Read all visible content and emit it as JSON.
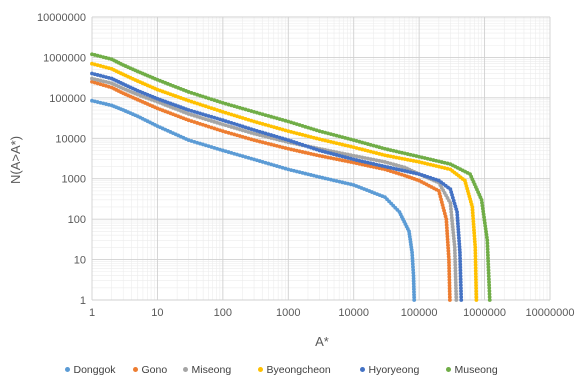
{
  "chart_data": {
    "type": "scatter",
    "title": "",
    "xlabel": "A*",
    "ylabel": "N(A>A*)",
    "xscale": "log",
    "yscale": "log",
    "xlim": [
      1,
      10000000
    ],
    "ylim": [
      1,
      10000000
    ],
    "grid": true,
    "legend_position": "bottom",
    "x_ticks": [
      "1",
      "10",
      "100",
      "1000",
      "10000",
      "100000",
      "1000000",
      "10000000"
    ],
    "y_ticks": [
      "1",
      "10",
      "100",
      "1000",
      "10000",
      "100000",
      "1000000",
      "10000000"
    ],
    "series": [
      {
        "name": "Donggok",
        "color": "#5B9BD5",
        "x": [
          1,
          2,
          3,
          5,
          10,
          30,
          100,
          300,
          1000,
          3000,
          10000,
          30000,
          50000,
          70000,
          78000,
          82000,
          84000
        ],
        "y": [
          85000,
          65000,
          50000,
          35000,
          20000,
          9000,
          5000,
          3000,
          1700,
          1100,
          700,
          350,
          150,
          50,
          15,
          4,
          1
        ]
      },
      {
        "name": "Gono",
        "color": "#ED7D31",
        "x": [
          1,
          2,
          3,
          5,
          10,
          30,
          100,
          300,
          1000,
          3000,
          10000,
          30000,
          60000,
          100000,
          200000,
          260000,
          285000,
          295000
        ],
        "y": [
          250000,
          180000,
          130000,
          90000,
          55000,
          28000,
          15000,
          9000,
          5500,
          3700,
          2500,
          1700,
          1200,
          900,
          500,
          100,
          10,
          1
        ]
      },
      {
        "name": "Miseong",
        "color": "#A5A5A5",
        "x": [
          1,
          2,
          3,
          5,
          10,
          30,
          100,
          300,
          1000,
          3000,
          10000,
          30000,
          60000,
          100000,
          200000,
          300000,
          350000,
          370000
        ],
        "y": [
          300000,
          230000,
          170000,
          120000,
          80000,
          40000,
          22000,
          13000,
          8000,
          5500,
          3700,
          2600,
          1900,
          1300,
          800,
          250,
          20,
          1
        ]
      },
      {
        "name": "Byeongcheon",
        "color": "#FFC000",
        "x": [
          1,
          2,
          3,
          5,
          10,
          30,
          100,
          300,
          1000,
          3000,
          10000,
          30000,
          100000,
          300000,
          500000,
          650000,
          720000,
          750000
        ],
        "y": [
          700000,
          520000,
          380000,
          260000,
          160000,
          85000,
          45000,
          26000,
          15000,
          9500,
          6000,
          3800,
          2600,
          1700,
          900,
          200,
          20,
          1
        ]
      },
      {
        "name": "Hyoryeong",
        "color": "#4472C4",
        "x": [
          1,
          2,
          3,
          5,
          10,
          30,
          100,
          300,
          1000,
          3000,
          10000,
          30000,
          100000,
          200000,
          300000,
          380000,
          420000,
          440000
        ],
        "y": [
          400000,
          300000,
          220000,
          150000,
          95000,
          50000,
          28000,
          16000,
          9000,
          5000,
          3000,
          2000,
          1300,
          900,
          550,
          150,
          15,
          1
        ]
      },
      {
        "name": "Museong",
        "color": "#70AD47",
        "x": [
          1,
          2,
          3,
          5,
          10,
          30,
          100,
          300,
          1000,
          3000,
          10000,
          30000,
          100000,
          300000,
          600000,
          900000,
          1100000,
          1200000
        ],
        "y": [
          1200000,
          900000,
          650000,
          450000,
          280000,
          140000,
          75000,
          45000,
          26000,
          15000,
          9000,
          5500,
          3500,
          2300,
          1300,
          300,
          30,
          1
        ]
      }
    ]
  }
}
